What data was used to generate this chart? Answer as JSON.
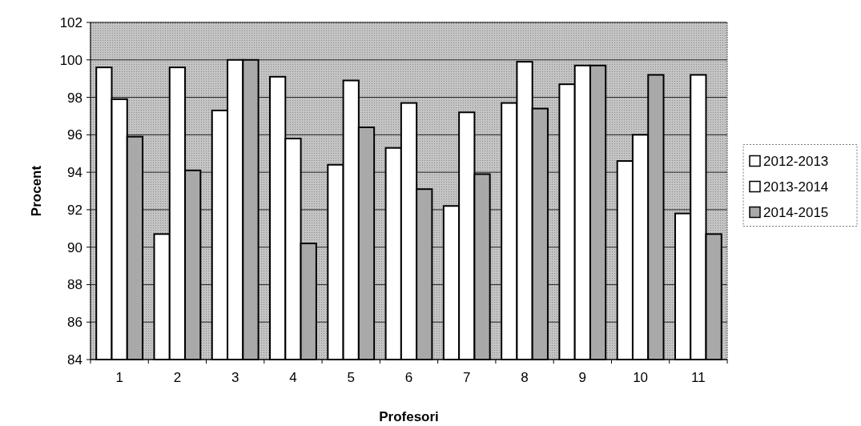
{
  "chart_data": {
    "type": "bar",
    "xlabel": "Profesori",
    "ylabel": "Procent",
    "categories": [
      "1",
      "2",
      "3",
      "4",
      "5",
      "6",
      "7",
      "8",
      "9",
      "10",
      "11"
    ],
    "series": [
      {
        "name": "2012-2013",
        "color": "#ffffff",
        "values": [
          99.6,
          90.7,
          97.3,
          99.1,
          94.4,
          95.3,
          92.2,
          97.7,
          98.7,
          94.6,
          91.8
        ]
      },
      {
        "name": "2013-2014",
        "color": "#ffffff",
        "values": [
          97.9,
          99.6,
          100,
          95.8,
          98.9,
          97.7,
          97.2,
          99.9,
          99.7,
          96.0,
          99.2
        ]
      },
      {
        "name": "2014-2015",
        "color": "#a9a9a9",
        "values": [
          95.9,
          94.1,
          100,
          90.2,
          96.4,
          93.1,
          93.9,
          97.4,
          99.7,
          99.2,
          90.7
        ]
      }
    ],
    "ylim": [
      84,
      102
    ],
    "yticks": [
      84,
      86,
      88,
      90,
      92,
      94,
      96,
      98,
      100,
      102
    ],
    "grid": "y",
    "legend": "right"
  }
}
